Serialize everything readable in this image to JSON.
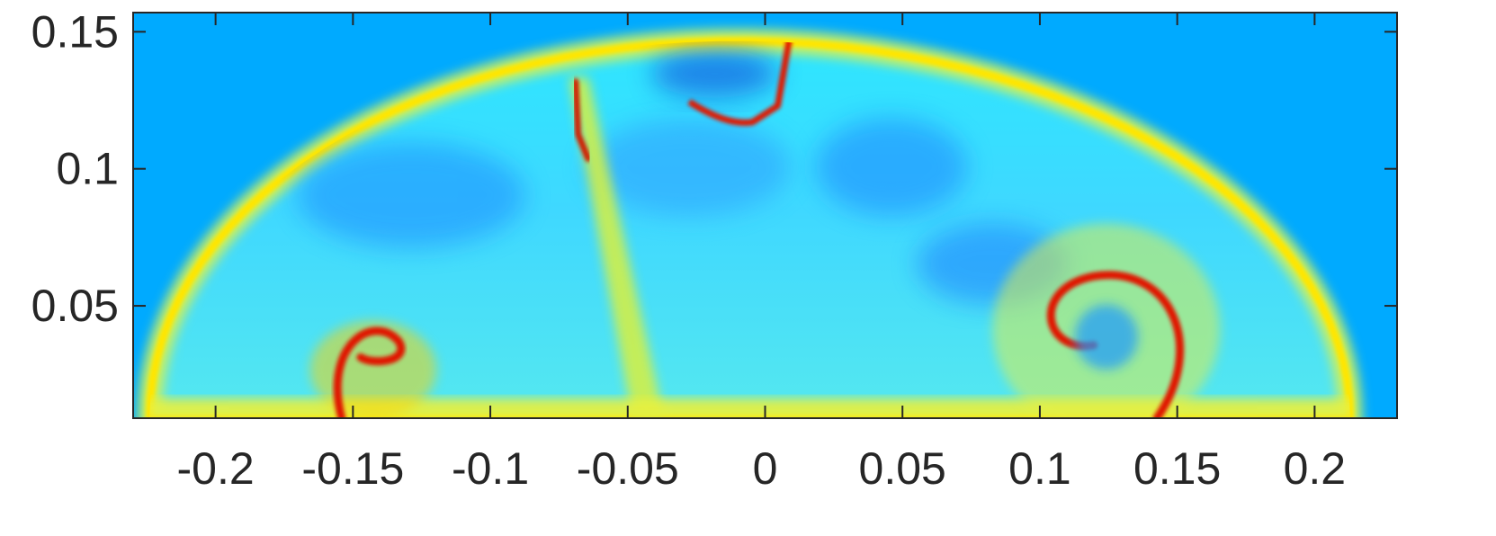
{
  "chart_data": {
    "type": "heatmap",
    "title": "",
    "xlabel": "",
    "ylabel": "",
    "xlim": [
      -0.23,
      0.23
    ],
    "ylim": [
      0.009,
      0.157
    ],
    "x_ticks": [
      {
        "value": -0.2,
        "label": "-0.2"
      },
      {
        "value": -0.15,
        "label": "-0.15"
      },
      {
        "value": -0.1,
        "label": "-0.1"
      },
      {
        "value": -0.05,
        "label": "-0.05"
      },
      {
        "value": 0,
        "label": "0"
      },
      {
        "value": 0.05,
        "label": "0.05"
      },
      {
        "value": 0.1,
        "label": "0.1"
      },
      {
        "value": 0.15,
        "label": "0.15"
      },
      {
        "value": 0.2,
        "label": "0.2"
      }
    ],
    "y_ticks": [
      {
        "value": 0.05,
        "label": "0.05"
      },
      {
        "value": 0.1,
        "label": "0.1"
      },
      {
        "value": 0.15,
        "label": "0.15"
      }
    ],
    "colormap": "jet",
    "background_color": "#00aaff",
    "grid": false,
    "legend": "none"
  }
}
